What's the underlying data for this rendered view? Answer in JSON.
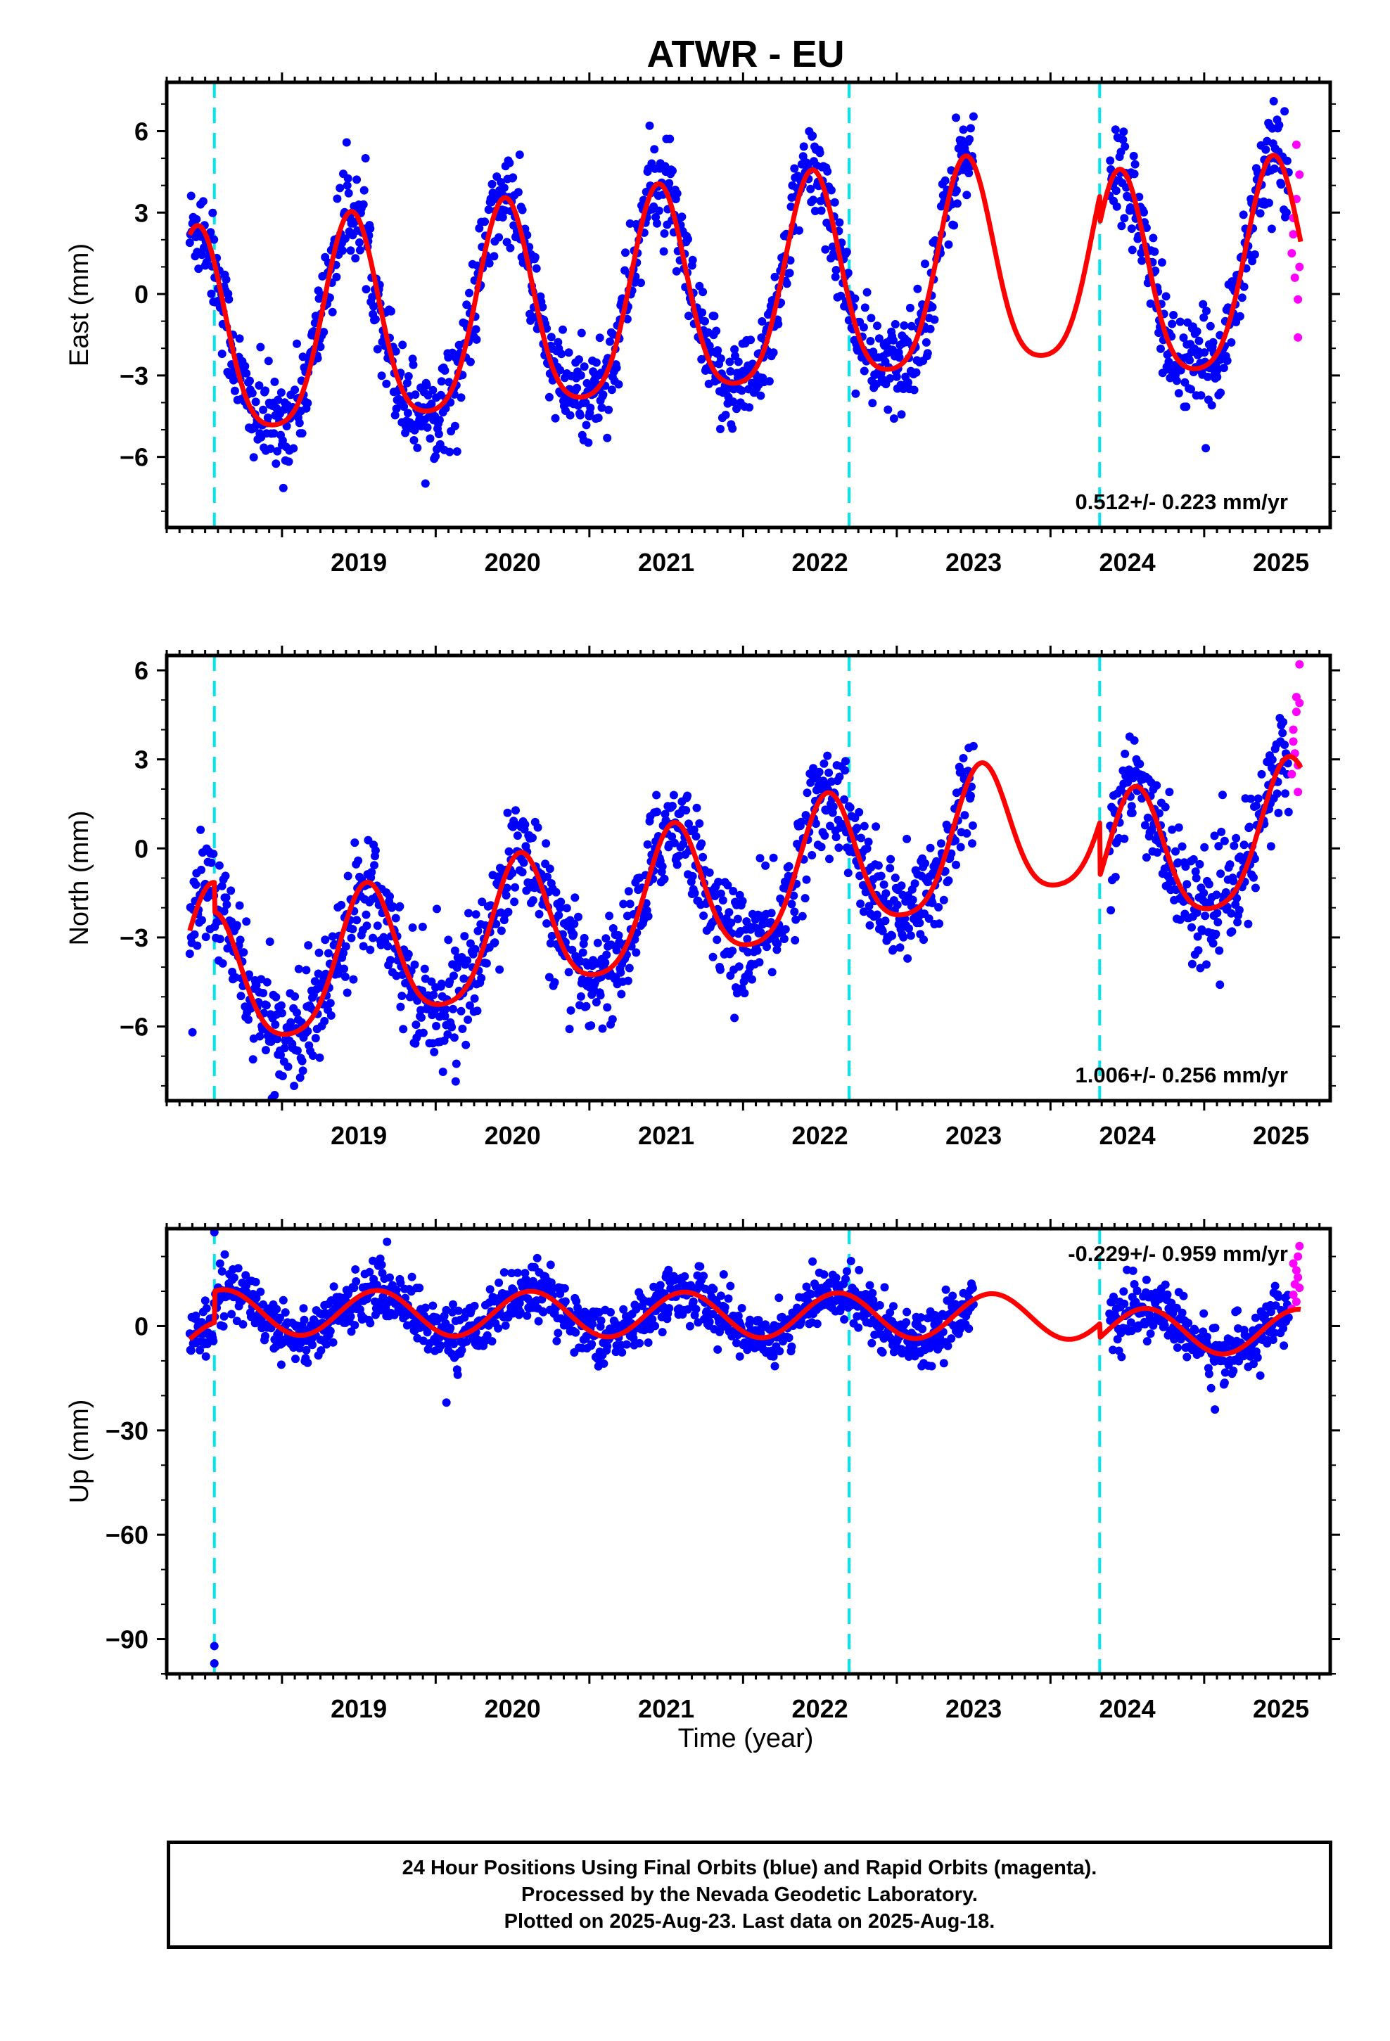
{
  "title": "ATWR - EU",
  "xlabel": "Time (year)",
  "x_tick_labels": [
    "2019",
    "2020",
    "2021",
    "2022",
    "2023",
    "2024",
    "2025"
  ],
  "colors": {
    "final": "#0000ff",
    "rapid": "#ff00ff",
    "model": "#ff0000",
    "breaks": "#00e5ee"
  },
  "footer": {
    "line1": "24 Hour Positions Using Final Orbits (blue) and Rapid Orbits (magenta).",
    "line2": "Processed by the Nevada Geodetic Laboratory.",
    "line3": "Plotted on 2025-Aug-23. Last data on 2025-Aug-18."
  },
  "chart_data": [
    {
      "type": "scatter",
      "component": "east",
      "ylabel": "East (mm)",
      "xlim": [
        2018.25,
        2025.82
      ],
      "ylim": [
        -8.6,
        7.8
      ],
      "yticks": [
        -6,
        -3,
        0,
        3,
        6
      ],
      "rate_label": "0.512+/- 0.223 mm/yr",
      "rate_label_position": "bottom-right",
      "breaks": [
        2018.56,
        2022.69,
        2024.32
      ],
      "data_start": 2018.4,
      "data_end": 2025.63,
      "final_end": 2025.55,
      "gap": [
        2023.5,
        2024.38
      ],
      "model": {
        "rate": 0.512,
        "offset": -2.0,
        "t_ref": 2018.4,
        "annual_amp": 3.8,
        "annual_peak": 2018.45,
        "semi_amp": 0.7,
        "semi_peak": 2018.45,
        "steps": [
          {
            "t": 2024.32,
            "size": -1.0
          }
        ]
      },
      "scatter_sigma": 0.9,
      "rapid_points": [
        [
          2025.57,
          1.5
        ],
        [
          2025.58,
          2.8
        ],
        [
          2025.59,
          0.6
        ],
        [
          2025.6,
          3.5
        ],
        [
          2025.61,
          -0.2
        ],
        [
          2025.62,
          4.4
        ],
        [
          2025.6,
          5.5
        ],
        [
          2025.61,
          -1.6
        ],
        [
          2025.58,
          2.2
        ],
        [
          2025.62,
          1.0
        ]
      ]
    },
    {
      "type": "scatter",
      "component": "north",
      "ylabel": "North (mm)",
      "xlim": [
        2018.25,
        2025.82
      ],
      "ylim": [
        -8.5,
        6.5
      ],
      "yticks": [
        -6,
        -3,
        0,
        3,
        6
      ],
      "rate_label": "1.006+/- 0.256 mm/yr",
      "rate_label_position": "bottom-right",
      "breaks": [
        2018.56,
        2022.69,
        2024.32
      ],
      "data_start": 2018.4,
      "data_end": 2025.63,
      "final_end": 2025.55,
      "gap": [
        2023.5,
        2024.38
      ],
      "model": {
        "rate": 1.006,
        "offset": -4.0,
        "t_ref": 2018.4,
        "annual_amp": 2.3,
        "annual_peak": 2018.55,
        "semi_amp": 0.4,
        "semi_peak": 2018.55,
        "steps": [
          {
            "t": 2018.56,
            "size": -1.0
          },
          {
            "t": 2024.32,
            "size": -1.8
          }
        ]
      },
      "scatter_sigma": 0.9,
      "rapid_points": [
        [
          2025.57,
          2.5
        ],
        [
          2025.58,
          4.0
        ],
        [
          2025.59,
          3.2
        ],
        [
          2025.6,
          5.1
        ],
        [
          2025.61,
          1.9
        ],
        [
          2025.62,
          6.2
        ],
        [
          2025.6,
          4.6
        ],
        [
          2025.61,
          2.8
        ],
        [
          2025.58,
          3.6
        ],
        [
          2025.62,
          4.9
        ]
      ]
    },
    {
      "type": "scatter",
      "component": "up",
      "ylabel": "Up (mm)",
      "xlim": [
        2018.25,
        2025.82
      ],
      "ylim": [
        -100,
        28
      ],
      "yticks": [
        -90,
        -60,
        -30,
        0
      ],
      "rate_label": "-0.229+/- 0.959 mm/yr",
      "rate_label_position": "top-right",
      "breaks": [
        2018.56,
        2022.69,
        2024.32
      ],
      "data_start": 2018.4,
      "data_end": 2025.63,
      "final_end": 2025.55,
      "gap": [
        2023.5,
        2024.38
      ],
      "model": {
        "rate": -0.229,
        "offset": -5.0,
        "t_ref": 2018.4,
        "annual_amp": 6.5,
        "annual_peak": 2018.62,
        "semi_amp": 0.0,
        "semi_peak": 2018.62,
        "steps": [
          {
            "t": 2018.56,
            "size": 9.0
          },
          {
            "t": 2024.32,
            "size": -4.0
          }
        ]
      },
      "scatter_sigma": 4.0,
      "outliers": [
        [
          2018.56,
          27
        ],
        [
          2018.56,
          -92
        ],
        [
          2018.56,
          -97
        ],
        [
          2020.07,
          -22
        ],
        [
          2025.07,
          -24
        ]
      ],
      "rapid_points": [
        [
          2025.57,
          5
        ],
        [
          2025.58,
          9
        ],
        [
          2025.59,
          12
        ],
        [
          2025.6,
          16
        ],
        [
          2025.61,
          20
        ],
        [
          2025.62,
          23
        ],
        [
          2025.6,
          7
        ],
        [
          2025.61,
          14
        ],
        [
          2025.58,
          18
        ],
        [
          2025.62,
          11
        ]
      ]
    }
  ]
}
